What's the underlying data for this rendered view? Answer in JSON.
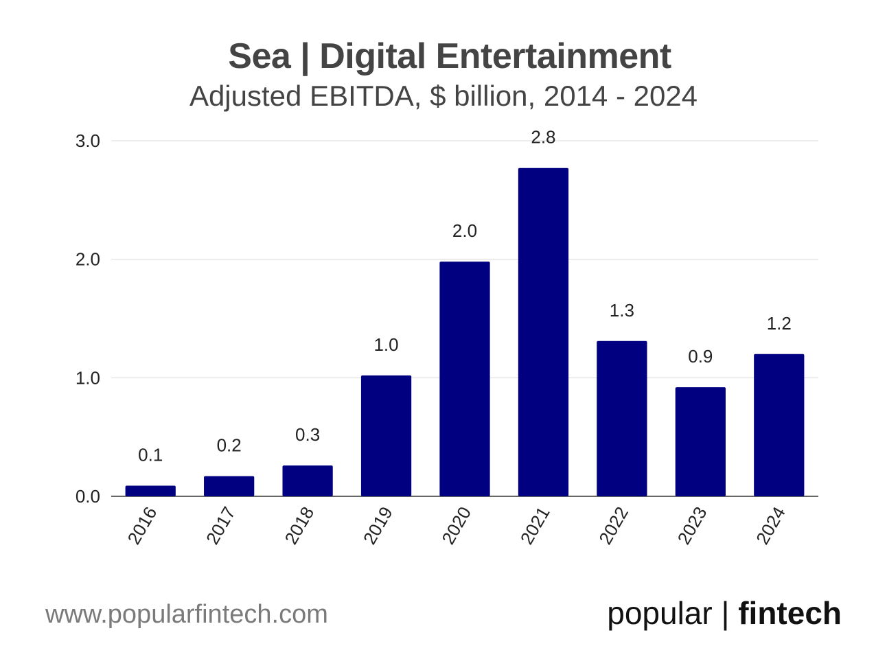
{
  "chart_data": {
    "type": "bar",
    "title": "Sea | Digital Entertainment",
    "subtitle": "Adjusted EBITDA, $ billion, 2014 - 2024",
    "categories": [
      "2016",
      "2017",
      "2018",
      "2019",
      "2020",
      "2021",
      "2022",
      "2023",
      "2024"
    ],
    "values": [
      0.09,
      0.17,
      0.26,
      1.02,
      1.98,
      2.77,
      1.31,
      0.92,
      1.2
    ],
    "data_labels": [
      "0.1",
      "0.2",
      "0.3",
      "1.0",
      "2.0",
      "2.8",
      "1.3",
      "0.9",
      "1.2"
    ],
    "yticks": [
      0,
      1,
      2,
      3
    ],
    "ytick_labels": [
      "0.0",
      "1.0",
      "2.0",
      "3.0"
    ],
    "ylim": [
      0,
      3
    ],
    "xlabel": "",
    "ylabel": "",
    "grid": true,
    "bar_color": "#000080"
  },
  "footer": {
    "url": "www.popularfintech.com",
    "brand_left": "popular | ",
    "brand_right": "fintech"
  }
}
